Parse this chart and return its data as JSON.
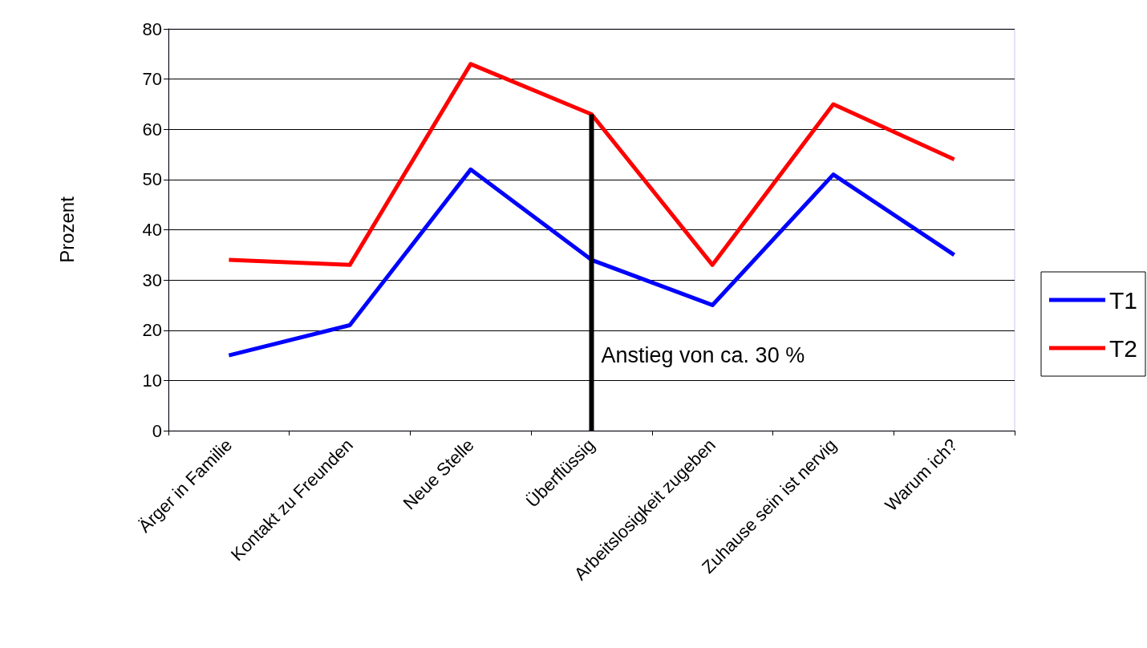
{
  "chart_data": {
    "type": "line",
    "categories": [
      "Ärger in Familie",
      "Kontakt zu Freunden",
      "Neue Stelle",
      "Überflüssig",
      "Arbeitslosigkeit zugeben",
      "Zuhause sein ist nervig",
      "Warum ich?"
    ],
    "series": [
      {
        "name": "T1",
        "color": "#0000ff",
        "values": [
          15,
          21,
          52,
          34,
          25,
          51,
          35
        ]
      },
      {
        "name": "T2",
        "color": "#ff0000",
        "values": [
          34,
          33,
          73,
          63,
          33,
          65,
          54
        ]
      },
      {
        "color": "#000000",
        "x": [
          "Überflüssig",
          "Überflüssig"
        ],
        "values": [
          0,
          63
        ]
      }
    ],
    "ylabel": "Prozent",
    "ylim": [
      0,
      80
    ],
    "yticks": [
      0,
      10,
      20,
      30,
      40,
      50,
      60,
      70,
      80
    ],
    "annotations": [
      {
        "text": "Anstieg von ca. 30 %",
        "x": "Überflüssig",
        "y": 15
      }
    ],
    "grid": "y",
    "legend": "right",
    "marker": "none",
    "line_style": "solid"
  }
}
